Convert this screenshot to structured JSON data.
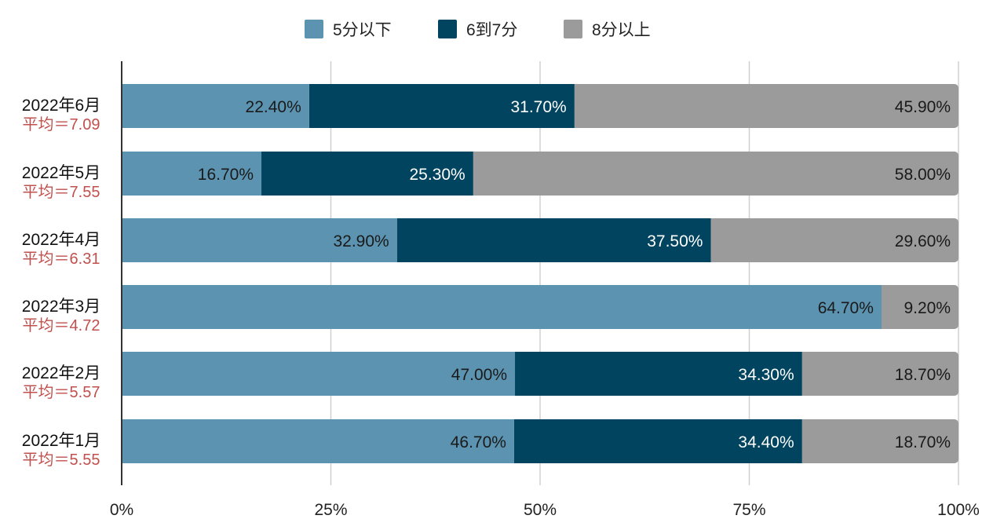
{
  "chart_data": {
    "type": "bar",
    "orientation": "horizontal",
    "stacked": "percent",
    "categories": [
      "2022年6月",
      "2022年5月",
      "2022年4月",
      "2022年3月",
      "2022年2月",
      "2022年1月"
    ],
    "averages": [
      "平均＝7.09",
      "平均＝7.55",
      "平均＝6.31",
      "平均＝4.72",
      "平均＝5.57",
      "平均＝5.55"
    ],
    "series": [
      {
        "name": "5分以下",
        "color": "#5b93b0",
        "label_color": "#1a1a1a",
        "values": [
          22.4,
          16.7,
          32.9,
          64.7,
          47.0,
          46.7
        ]
      },
      {
        "name": "6到7分",
        "color": "#00445f",
        "label_color": "#ffffff",
        "values": [
          31.7,
          25.3,
          37.5,
          null,
          34.3,
          34.4
        ]
      },
      {
        "name": "8分以上",
        "color": "#9b9b9b",
        "label_color": "#1a1a1a",
        "values": [
          45.9,
          58.0,
          29.6,
          9.2,
          18.7,
          18.7
        ]
      }
    ],
    "xlim": [
      0,
      100
    ],
    "xticks": [
      "0%",
      "25%",
      "50%",
      "75%",
      "100%"
    ],
    "legend": "top-center",
    "grid": true,
    "average_color": "#c0504d"
  }
}
